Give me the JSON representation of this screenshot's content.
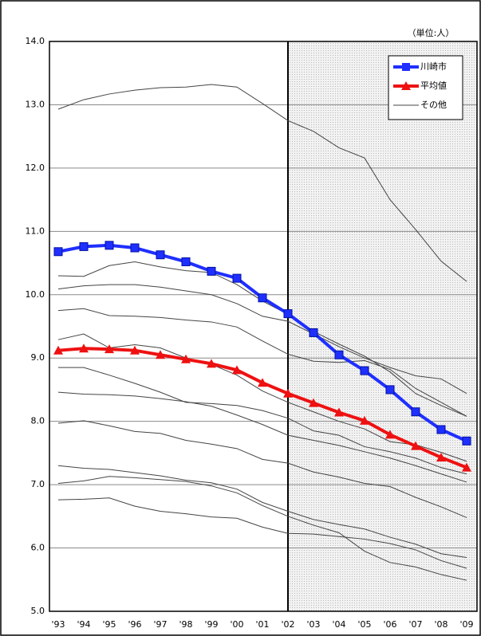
{
  "chart_data": {
    "type": "line",
    "unit_label": "（単位:人）",
    "categories": [
      "'93",
      "'94",
      "'95",
      "'96",
      "'97",
      "'98",
      "'99",
      "'00",
      "'01",
      "'02",
      "'03",
      "'04",
      "'05",
      "'06",
      "'07",
      "'08",
      "'09"
    ],
    "ylim": [
      5.0,
      14.0
    ],
    "yticks": [
      {
        "value": 5,
        "label": "5.0"
      },
      {
        "value": 6,
        "label": "6.0"
      },
      {
        "value": 7,
        "label": "7.0"
      },
      {
        "value": 8,
        "label": "8.0"
      },
      {
        "value": 9,
        "label": "9.0"
      },
      {
        "value": 10,
        "label": "10.0"
      },
      {
        "value": 11,
        "label": "11.0"
      },
      {
        "value": 12,
        "label": "12.0"
      },
      {
        "value": 13,
        "label": "13.0"
      },
      {
        "value": 14,
        "label": "14.0"
      }
    ],
    "grid": true,
    "shade_from": "'02",
    "series": [
      {
        "name": "川崎市",
        "color": "#1f2fff",
        "marker": "square",
        "values": [
          10.68,
          10.76,
          10.78,
          10.74,
          10.63,
          10.52,
          10.37,
          10.26,
          9.95,
          9.7,
          9.4,
          9.05,
          8.8,
          8.5,
          8.15,
          7.87,
          7.69
        ]
      },
      {
        "name": "平均値",
        "color": "#ee1111",
        "marker": "triangle",
        "values": [
          9.12,
          9.15,
          9.14,
          9.12,
          9.05,
          8.98,
          8.91,
          8.81,
          8.61,
          8.44,
          8.29,
          8.14,
          8.01,
          7.79,
          7.61,
          7.43,
          7.27
        ]
      }
    ],
    "others": {
      "name": "その他",
      "color": "#444444",
      "lines": [
        [
          12.93,
          13.08,
          13.17,
          13.23,
          13.27,
          13.28,
          13.32,
          13.28,
          13.02,
          12.75,
          12.58,
          12.32,
          12.16,
          11.5,
          11.03,
          10.53,
          10.21
        ],
        [
          10.3,
          10.29,
          10.46,
          10.52,
          10.44,
          10.38,
          10.35,
          10.16,
          9.9,
          9.69,
          9.42,
          9.22,
          9.03,
          8.78,
          8.44,
          8.25,
          8.08
        ],
        [
          10.09,
          10.14,
          10.16,
          10.16,
          10.12,
          10.06,
          10.0,
          9.86,
          9.66,
          9.58,
          9.38,
          9.18,
          9.0,
          8.85,
          8.72,
          8.67,
          8.44
        ],
        [
          9.75,
          9.78,
          9.67,
          9.66,
          9.64,
          9.6,
          9.57,
          9.49,
          9.27,
          9.06,
          8.95,
          8.93,
          8.96,
          8.82,
          8.52,
          8.3,
          8.08
        ],
        [
          9.29,
          9.38,
          9.16,
          9.21,
          9.16,
          9.0,
          8.9,
          8.73,
          8.48,
          8.3,
          8.15,
          8.0,
          7.88,
          7.68,
          7.63,
          7.51,
          7.37
        ],
        [
          8.85,
          8.85,
          8.73,
          8.6,
          8.46,
          8.3,
          8.28,
          8.25,
          8.17,
          8.05,
          7.85,
          7.78,
          7.6,
          7.52,
          7.42,
          7.27,
          7.17
        ],
        [
          8.46,
          8.43,
          8.42,
          8.4,
          8.36,
          8.31,
          8.24,
          8.1,
          7.95,
          7.78,
          7.7,
          7.62,
          7.52,
          7.42,
          7.3,
          7.17,
          7.04
        ],
        [
          7.97,
          8.01,
          7.93,
          7.84,
          7.81,
          7.7,
          7.64,
          7.57,
          7.4,
          7.34,
          7.2,
          7.12,
          7.02,
          6.97,
          6.8,
          6.65,
          6.48
        ],
        [
          7.3,
          7.26,
          7.24,
          7.19,
          7.14,
          7.07,
          7.03,
          6.93,
          6.72,
          6.58,
          6.45,
          6.37,
          6.3,
          6.17,
          6.06,
          5.91,
          5.85
        ],
        [
          7.02,
          7.06,
          7.13,
          7.11,
          7.08,
          7.05,
          6.98,
          6.87,
          6.67,
          6.5,
          6.36,
          6.24,
          5.95,
          5.77,
          5.7,
          5.58,
          5.49
        ],
        [
          6.76,
          6.77,
          6.79,
          6.66,
          6.58,
          6.54,
          6.49,
          6.47,
          6.33,
          6.23,
          6.22,
          6.18,
          6.14,
          6.07,
          5.97,
          5.8,
          5.68
        ]
      ]
    }
  }
}
